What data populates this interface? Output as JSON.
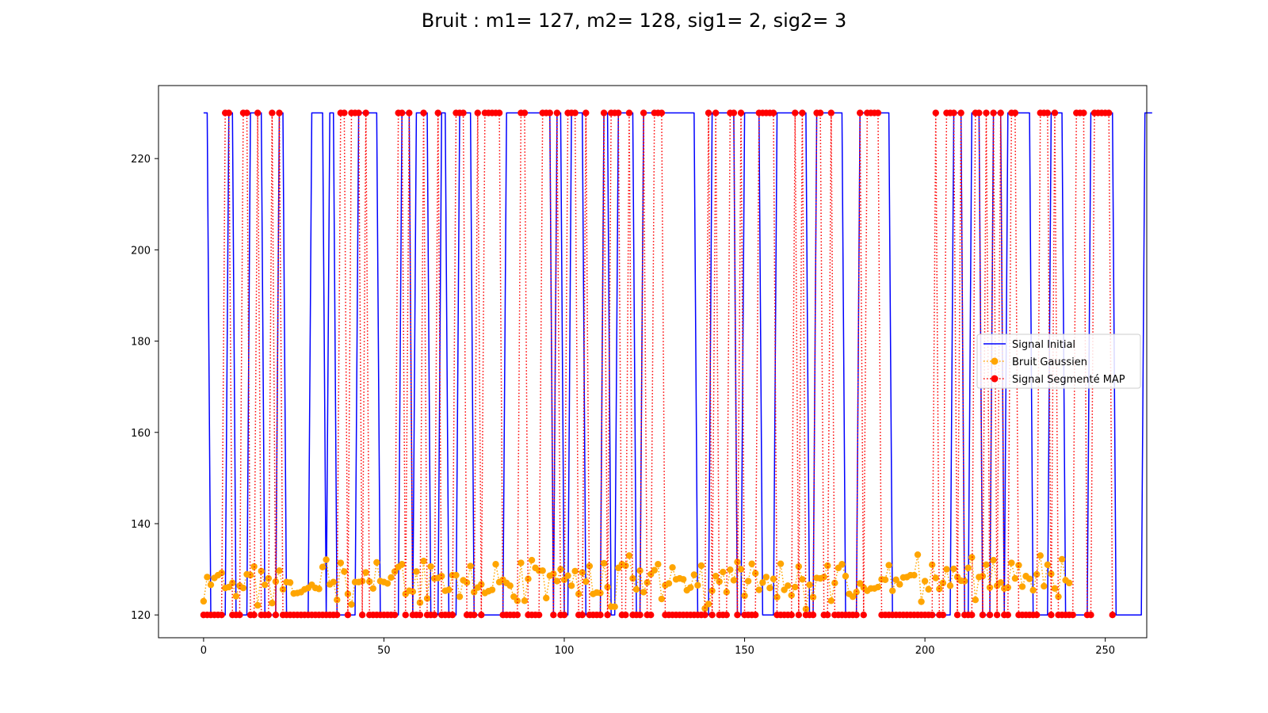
{
  "chart_data": {
    "type": "line",
    "title": "Bruit : m1= 127, m2= 128, sig1= 2, sig2= 3",
    "xlabel": "",
    "ylabel": "",
    "xlim": [
      -12.5,
      261.5
    ],
    "ylim": [
      115,
      236
    ],
    "xticks": [
      0,
      50,
      100,
      150,
      200,
      250
    ],
    "yticks": [
      120,
      140,
      160,
      180,
      200,
      220
    ],
    "grid": false,
    "legend_position": "center-right",
    "x": "0..249 (integer sample index)",
    "series": [
      {
        "name": "Signal Initial",
        "color": "#0000ff",
        "style": "solid",
        "values": [
          230,
          230,
          120,
          120,
          120,
          120,
          120,
          230,
          230,
          120,
          120,
          120,
          120,
          230,
          230,
          230,
          230,
          120,
          120,
          120,
          120,
          230,
          230,
          120,
          120,
          120,
          120,
          120,
          120,
          120,
          230,
          230,
          230,
          230,
          120,
          230,
          230,
          120,
          120,
          120,
          120,
          120,
          120,
          230,
          230,
          230,
          230,
          230,
          230,
          120,
          120,
          120,
          120,
          120,
          120,
          230,
          230,
          230,
          120,
          230,
          230,
          230,
          230,
          120,
          120,
          120,
          230,
          230,
          120,
          120,
          120,
          230,
          230,
          230,
          230,
          120,
          120,
          120,
          120,
          120,
          120,
          120,
          120,
          120,
          230,
          230,
          230,
          230,
          230,
          230,
          230,
          230,
          230,
          230,
          230,
          230,
          230,
          120,
          230,
          230,
          120,
          120,
          230,
          230,
          230,
          230,
          120,
          120,
          120,
          120,
          120,
          230,
          230,
          120,
          120,
          230,
          230,
          230,
          230,
          230,
          120,
          120,
          230,
          230,
          230,
          230,
          230,
          230,
          230,
          230,
          230,
          230,
          230,
          230,
          230,
          230,
          230,
          120,
          120,
          120,
          120,
          230,
          230,
          230,
          230,
          230,
          230,
          230,
          120,
          120,
          230,
          230,
          230,
          230,
          230,
          120,
          120,
          120,
          120,
          230,
          230,
          230,
          230,
          230,
          230,
          230,
          230,
          230,
          120,
          120,
          230,
          230,
          230,
          230,
          230,
          230,
          230,
          230,
          120,
          120,
          120,
          120,
          230,
          230,
          230,
          230,
          230,
          230,
          230,
          230,
          230,
          120,
          120,
          120,
          120,
          120,
          120,
          120,
          120,
          120,
          120,
          120,
          120,
          120,
          120,
          120,
          120,
          120,
          230,
          230,
          230,
          120,
          120,
          230,
          230,
          230,
          120,
          120,
          120,
          230,
          230,
          230,
          120,
          230,
          230,
          230,
          230,
          230,
          230,
          230,
          120,
          120,
          120,
          120,
          120,
          230,
          230,
          230,
          230,
          120,
          120,
          120,
          120,
          120,
          120,
          120,
          230,
          230,
          230,
          230,
          230,
          230,
          230,
          120,
          120,
          120,
          120,
          120,
          120,
          120,
          120,
          230,
          230,
          230
        ]
      },
      {
        "name": "Bruit Gaussien",
        "color": "#ffa500",
        "style": "dotted-markers",
        "values": [
          123.0,
          128.3,
          126.6,
          128.1,
          128.7,
          129.2,
          125.9,
          126.1,
          127.0,
          124.1,
          126.4,
          125.9,
          128.9,
          128.7,
          130.6,
          122.1,
          129.6,
          126.6,
          128.0,
          122.6,
          127.3,
          129.7,
          125.6,
          127.2,
          127.1,
          124.7,
          124.8,
          125.0,
          125.6,
          125.9,
          126.6,
          125.9,
          125.7,
          130.5,
          132.1,
          126.7,
          127.2,
          123.3,
          131.4,
          129.5,
          124.6,
          122.3,
          127.2,
          127.2,
          127.4,
          129.3,
          127.3,
          125.8,
          131.5,
          127.4,
          127.2,
          126.9,
          128.2,
          129.5,
          130.5,
          131.1,
          124.6,
          125.3,
          125.1,
          129.5,
          122.7,
          131.8,
          123.6,
          130.6,
          128.0,
          128.1,
          128.5,
          125.3,
          125.5,
          128.7,
          128.7,
          124.0,
          127.6,
          127.1,
          130.7,
          125.0,
          126.0,
          126.7,
          124.8,
          125.2,
          125.5,
          131.1,
          127.2,
          127.7,
          127.0,
          126.4,
          124.0,
          123.1,
          131.4,
          123.1,
          127.9,
          132.0,
          130.3,
          129.7,
          129.7,
          123.7,
          128.6,
          129.0,
          127.4,
          130.0,
          127.7,
          128.6,
          126.4,
          129.6,
          124.6,
          129.3,
          127.3,
          130.7,
          124.6,
          124.9,
          124.8,
          131.3,
          126.1,
          121.8,
          121.8,
          130.3,
          131.1,
          130.8,
          133.0,
          128.0,
          125.6,
          129.7,
          125.0,
          127.1,
          128.9,
          129.8,
          131.1,
          123.5,
          126.5,
          126.9,
          130.4,
          127.8,
          128.0,
          127.8,
          125.4,
          126.0,
          128.8,
          126.5,
          130.8,
          121.4,
          122.4,
          125.3,
          128.5,
          127.3,
          129.4,
          125.0,
          129.9,
          127.6,
          131.6,
          130.0,
          124.2,
          127.4,
          131.2,
          129.1,
          125.5,
          127.1,
          128.3,
          125.9,
          127.9,
          123.9,
          131.2,
          125.5,
          126.4,
          124.3,
          126.1,
          130.6,
          127.8,
          121.3,
          126.6,
          123.9,
          128.1,
          128.0,
          128.3,
          130.8,
          123.1,
          127.0,
          130.3,
          131.1,
          128.5,
          124.6,
          124.0,
          125.0,
          126.9,
          126.0,
          125.3,
          125.8,
          125.8,
          126.1,
          127.8,
          127.7,
          130.9,
          125.3,
          127.7,
          126.7,
          128.2,
          128.3,
          128.7,
          128.7,
          133.2,
          122.9,
          127.4,
          125.6,
          131.0,
          128.1,
          125.7,
          127.0,
          130.0,
          126.4,
          130.1,
          128.3,
          127.5,
          127.4,
          130.3,
          132.6,
          123.3,
          128.3,
          128.5,
          131.0,
          126.0,
          132.0,
          126.4,
          127.1,
          125.8,
          126.0,
          131.4,
          128.0,
          130.9,
          126.2,
          128.5,
          127.9,
          125.4,
          128.9,
          133.0,
          126.3,
          131.0,
          129.0,
          125.8,
          124.0,
          132.2,
          127.6,
          127.0
        ]
      },
      {
        "name": "Signal Segmenté MAP",
        "color": "#ff0000",
        "style": "dotted-markers",
        "values": [
          120,
          120,
          120,
          120,
          120,
          120,
          230,
          230,
          120,
          120,
          120,
          230,
          230,
          120,
          120,
          230,
          120,
          120,
          120,
          230,
          120,
          230,
          120,
          120,
          120,
          120,
          120,
          120,
          120,
          120,
          120,
          120,
          120,
          120,
          120,
          120,
          120,
          120,
          230,
          230,
          120,
          230,
          230,
          230,
          120,
          230,
          120,
          120,
          120,
          120,
          120,
          120,
          120,
          120,
          230,
          230,
          120,
          230,
          120,
          120,
          120,
          230,
          120,
          120,
          120,
          230,
          120,
          120,
          120,
          120,
          230,
          230,
          230,
          120,
          120,
          120,
          230,
          120,
          230,
          230,
          230,
          230,
          230,
          120,
          120,
          120,
          120,
          120,
          230,
          230,
          120,
          120,
          120,
          120,
          230,
          230,
          230,
          120,
          230,
          120,
          120,
          230,
          230,
          230,
          120,
          120,
          230,
          120,
          120,
          120,
          120,
          230,
          120,
          230,
          230,
          230,
          120,
          120,
          230,
          120,
          120,
          120,
          230,
          120,
          120,
          230,
          230,
          230,
          120,
          120,
          120,
          120,
          120,
          120,
          120,
          120,
          120,
          120,
          120,
          120,
          230,
          120,
          230,
          120,
          120,
          120,
          230,
          230,
          120,
          230,
          120,
          120,
          120,
          120,
          230,
          230,
          230,
          230,
          230,
          120,
          120,
          120,
          120,
          120,
          230,
          120,
          230,
          120,
          120,
          120,
          230,
          230,
          120,
          120,
          230,
          120,
          120,
          120,
          120,
          120,
          120,
          120,
          230,
          120,
          230,
          230,
          230,
          230,
          120,
          120,
          120,
          120,
          120,
          120,
          120,
          120,
          120,
          120,
          120,
          120,
          120,
          120,
          120,
          230,
          120,
          120,
          230,
          230,
          230,
          120,
          230,
          120,
          120,
          120,
          230,
          230,
          120,
          230,
          120,
          230,
          120,
          230,
          120,
          120,
          230,
          230,
          120,
          120,
          120,
          120,
          120,
          120,
          230,
          230,
          230,
          120,
          230,
          120,
          120,
          120,
          120,
          120,
          230,
          230,
          230,
          120,
          120,
          230,
          230,
          230,
          230,
          230,
          120
        ]
      }
    ]
  }
}
